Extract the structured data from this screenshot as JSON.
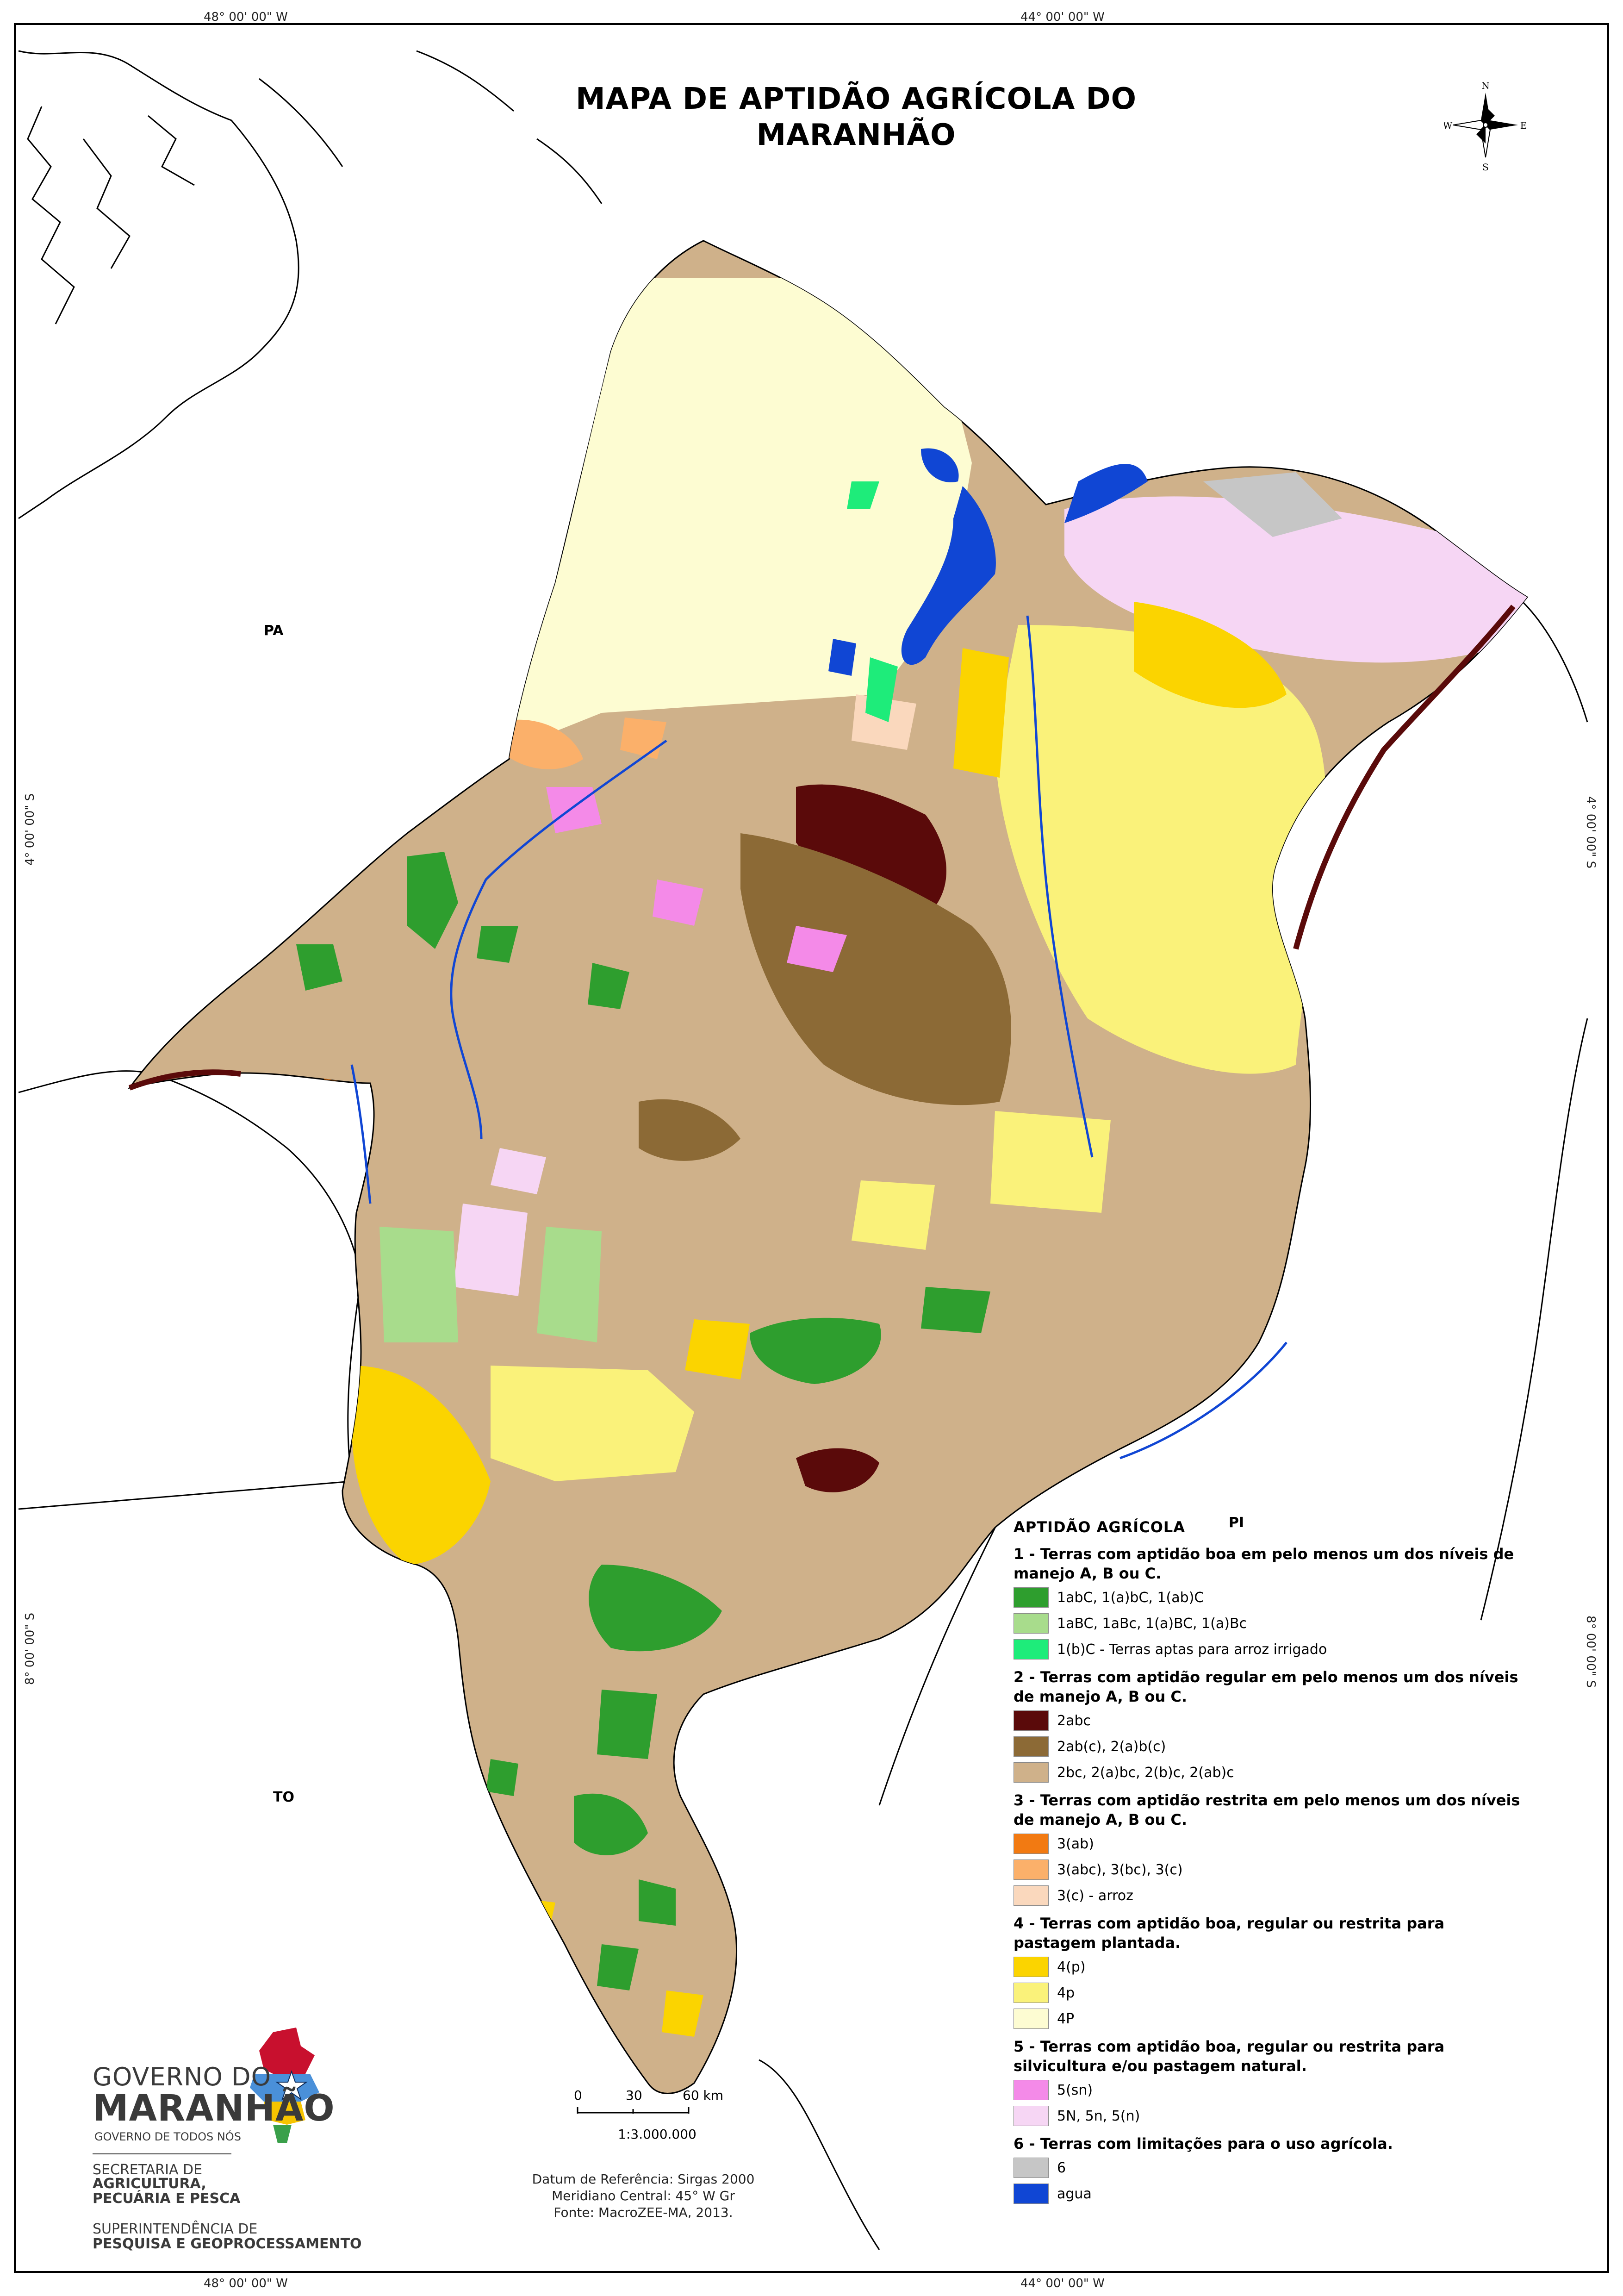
{
  "title": "MAPA DE APTIDÃO AGRÍCOLA DO MARANHÃO",
  "coordinates": {
    "top_left": "48° 00' 00\" W",
    "top_right": "44° 00' 00\" W",
    "bottom_left": "48° 00' 00\" W",
    "bottom_right": "44° 00' 00\" W",
    "left_upper": "4° 00' 00\" S",
    "left_lower": "8° 00' 00\" S",
    "right_upper": "4° 00' 00\" S",
    "right_lower": "8° 00' 00\" S"
  },
  "neighbors": {
    "pa": "PA",
    "to": "TO",
    "pi": "PI"
  },
  "compass": {
    "n": "N",
    "s": "S",
    "e": "E",
    "w": "W"
  },
  "legend": {
    "title": "APTIDÃO AGRÍCOLA",
    "groups": [
      {
        "heading": "1 - Terras com aptidão boa em pelo menos um dos níveis de manejo A, B ou C.",
        "items": [
          {
            "label": "1abC, 1(a)bC, 1(ab)C",
            "color": "#2e9e2e"
          },
          {
            "label": "1aBC, 1aBc, 1(a)BC, 1(a)Bc",
            "color": "#a8dc8c"
          },
          {
            "label": "1(b)C - Terras aptas para arroz irrigado",
            "color": "#1eec7a"
          }
        ]
      },
      {
        "heading": "2 - Terras com aptidão regular em pelo menos um dos níveis de manejo A, B ou C.",
        "items": [
          {
            "label": "2abc",
            "color": "#5a0a0a"
          },
          {
            "label": "2ab(c), 2(a)b(c)",
            "color": "#8c6a36"
          },
          {
            "label": "2bc, 2(a)bc, 2(b)c, 2(ab)c",
            "color": "#cfb18a"
          }
        ]
      },
      {
        "heading": "3 - Terras com aptidão restrita em pelo menos um dos níveis de manejo A, B ou C.",
        "items": [
          {
            "label": "3(ab)",
            "color": "#f27a12"
          },
          {
            "label": "3(abc), 3(bc), 3(c)",
            "color": "#fbb06a"
          },
          {
            "label": "3(c) - arroz",
            "color": "#fad8bd"
          }
        ]
      },
      {
        "heading": "4 - Terras com aptidão boa, regular ou restrita para pastagem plantada.",
        "items": [
          {
            "label": "4(p)",
            "color": "#fbd400"
          },
          {
            "label": "4p",
            "color": "#faf27a"
          },
          {
            "label": "4P",
            "color": "#fdfcd2"
          }
        ]
      },
      {
        "heading": "5 - Terras com aptidão boa, regular ou restrita para silvicultura e/ou pastagem natural.",
        "items": [
          {
            "label": "5(sn)",
            "color": "#f48ae8"
          },
          {
            "label": "5N, 5n, 5(n)",
            "color": "#f6d6f4"
          }
        ]
      },
      {
        "heading": "6 - Terras com limitações para o uso agrícola.",
        "items": [
          {
            "label": "6",
            "color": "#c6c6c6"
          },
          {
            "label": "agua",
            "color": "#1046d4"
          }
        ]
      }
    ]
  },
  "scale": {
    "ticks": [
      "0",
      "30",
      "60 km"
    ],
    "ratio": "1:3.000.000"
  },
  "credits": {
    "datum": "Datum de Referência: Sirgas 2000",
    "meridian": "Meridiano Central: 45° W Gr",
    "source": "Fonte: MacroZEE-MA, 2013."
  },
  "logo": {
    "line1": "GOVERNO DO",
    "line2": "MARANHÃO",
    "line3": "GOVERNO DE TODOS NÓS",
    "secretaria": "SECRETARIA DE",
    "secretaria_name": "AGRICULTURA, PECUÁRIA E PESCA",
    "superintendencia": "SUPERINTENDÊNCIA DE",
    "superintendencia_name": "PESQUISA E GEOPROCESSAMENTO"
  },
  "colors": {
    "state_base": "#cfb18a",
    "water": "#1046d4",
    "outline": "#000000"
  }
}
